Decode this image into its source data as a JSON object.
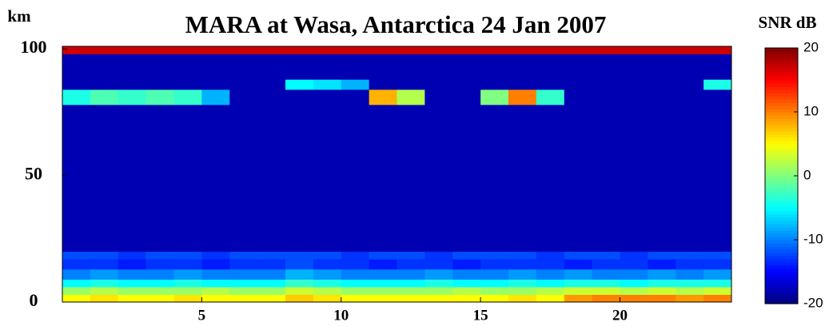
{
  "chart_data": {
    "type": "heatmap",
    "title": "MARA at Wasa, Antarctica 24 Jan 2007",
    "ylabel": "km",
    "colorbar_label": "SNR dB",
    "xbins": [
      0,
      1,
      2,
      3,
      4,
      5,
      6,
      7,
      8,
      9,
      10,
      11,
      12,
      13,
      14,
      15,
      16,
      17,
      18,
      19,
      20,
      21,
      22,
      23,
      24
    ],
    "ybins": [
      0,
      3,
      6,
      9,
      13,
      17,
      20,
      78,
      84,
      88,
      98,
      101
    ],
    "z": [
      [
        5,
        6,
        5,
        5,
        6,
        5,
        5,
        5,
        7,
        6,
        5,
        5,
        5,
        5,
        5,
        5,
        6,
        5,
        9,
        10,
        10,
        10,
        9,
        10
      ],
      [
        1,
        2,
        1,
        1,
        1,
        2,
        1,
        1,
        3,
        2,
        1,
        1,
        1,
        1,
        2,
        1,
        1,
        2,
        3,
        3,
        2,
        3,
        2,
        3
      ],
      [
        -5,
        -4,
        -5,
        -5,
        -4,
        -5,
        -5,
        -5,
        -3,
        -4,
        -5,
        -5,
        -5,
        -4,
        -5,
        -5,
        -4,
        -5,
        -4,
        -4,
        -5,
        -4,
        -4,
        -4
      ],
      [
        -10,
        -9,
        -10,
        -10,
        -9,
        -10,
        -10,
        -10,
        -8,
        -9,
        -10,
        -10,
        -10,
        -9,
        -10,
        -10,
        -9,
        -10,
        -9,
        -10,
        -10,
        -9,
        -10,
        -9
      ],
      [
        -13,
        -13,
        -14,
        -13,
        -13,
        -14,
        -13,
        -13,
        -12,
        -13,
        -13,
        -14,
        -13,
        -13,
        -14,
        -13,
        -13,
        -13,
        -14,
        -13,
        -13,
        -14,
        -13,
        -13
      ],
      [
        -12,
        -12,
        -13,
        -12,
        -12,
        -13,
        -12,
        -12,
        -12,
        -12,
        -13,
        -12,
        -12,
        -13,
        -12,
        -12,
        -12,
        -13,
        -12,
        -12,
        -13,
        -12,
        -12,
        -12
      ],
      [
        -18,
        -18,
        -18,
        -18,
        -18,
        -18,
        -18,
        -18,
        -18,
        -18,
        -18,
        -18,
        -18,
        -18,
        -18,
        -18,
        -18,
        -18,
        -18,
        -18,
        -18,
        -18,
        -18,
        -18
      ],
      [
        -4,
        -2,
        -3,
        -2,
        -3,
        -8,
        -18,
        -18,
        -18,
        -18,
        -18,
        8,
        2,
        -18,
        -18,
        0,
        10,
        -3,
        -18,
        -18,
        -18,
        -18,
        -18,
        -18
      ],
      [
        -18,
        -18,
        -18,
        -18,
        -18,
        -18,
        -18,
        -18,
        -5,
        -6,
        -8,
        -18,
        -18,
        -18,
        -18,
        -18,
        -18,
        -18,
        -18,
        -18,
        -18,
        -18,
        -18,
        -4
      ],
      [
        -18,
        -18,
        -18,
        -18,
        -18,
        -18,
        -18,
        -18,
        -18,
        -18,
        -18,
        -18,
        -18,
        -18,
        -18,
        -18,
        -18,
        -18,
        -18,
        -18,
        -18,
        -18,
        -18,
        -18
      ],
      [
        17,
        17,
        17,
        17,
        17,
        17,
        17,
        17,
        17,
        17,
        17,
        17,
        17,
        17,
        17,
        17,
        17,
        17,
        17,
        17,
        17,
        17,
        17,
        17
      ]
    ],
    "xlim": [
      0,
      24
    ],
    "xticks": [
      5,
      10,
      15,
      20
    ],
    "ylim": [
      0,
      101
    ],
    "yticks": [
      0,
      50,
      100
    ],
    "clim": [
      -20,
      20
    ],
    "cticks": [
      -20,
      -10,
      0,
      10,
      20
    ],
    "colormap": "jet"
  }
}
